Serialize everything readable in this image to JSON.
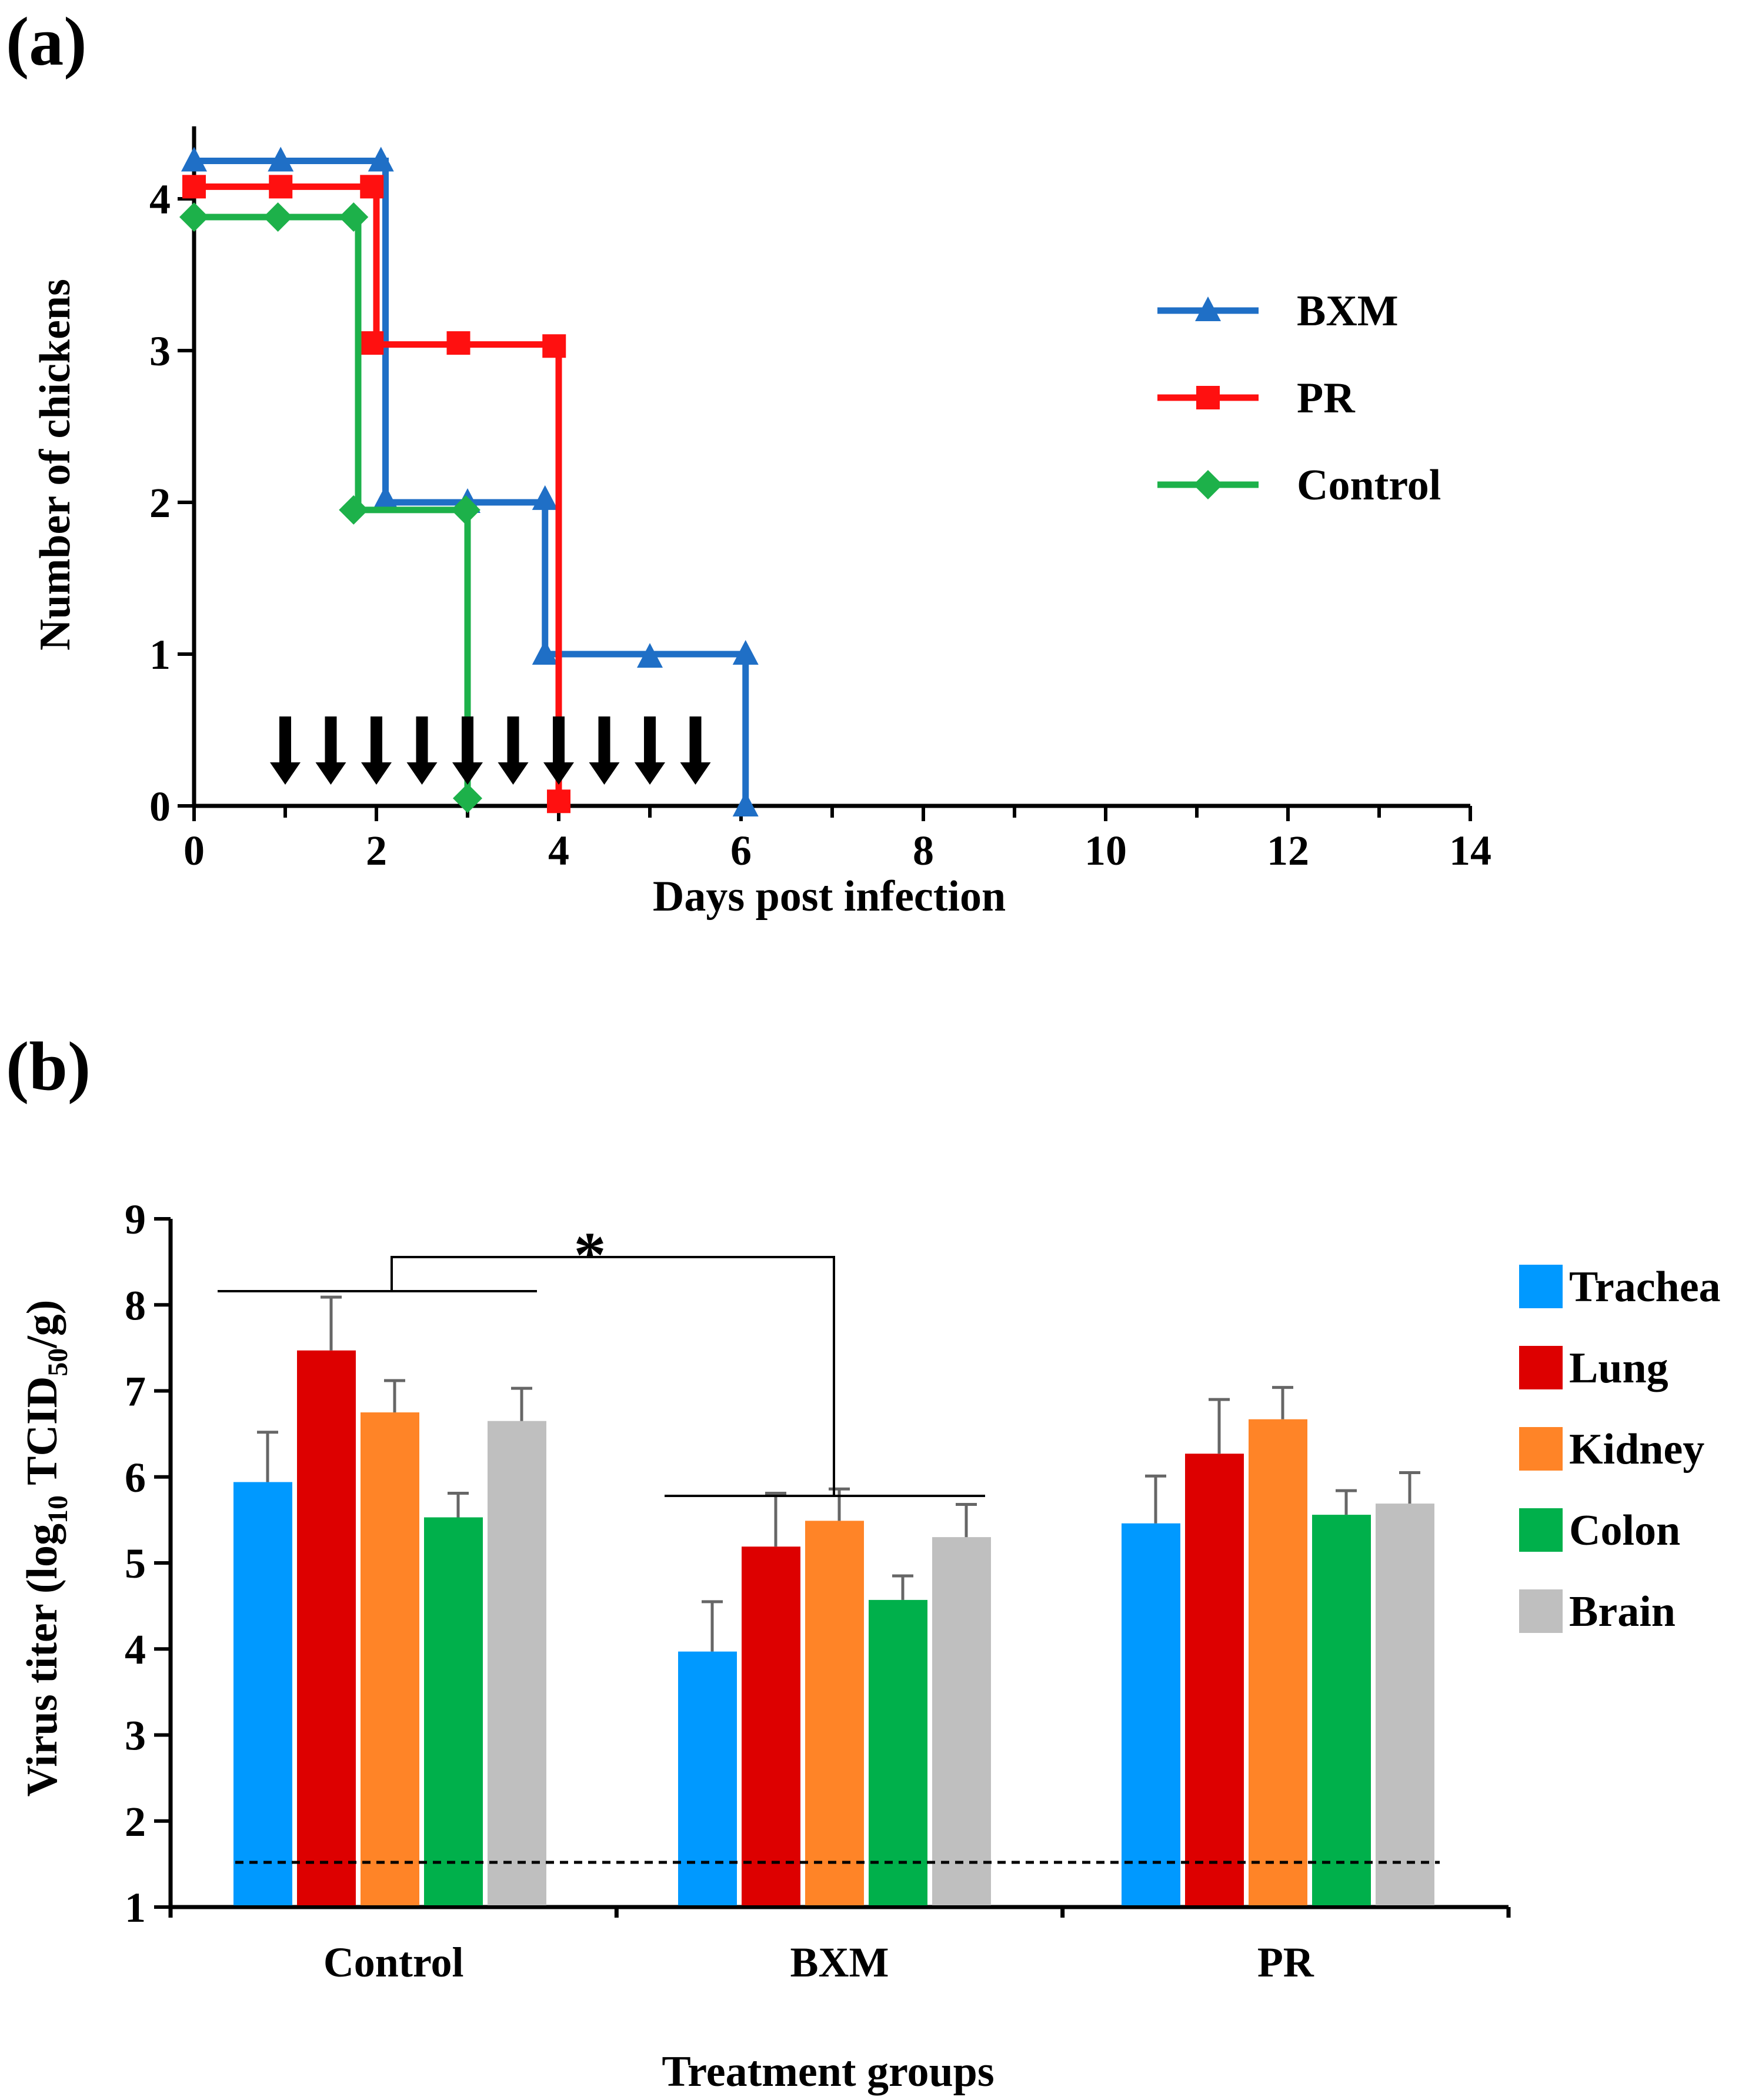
{
  "figure": {
    "panel_a_label": "(a)",
    "panel_b_label": "(b)"
  },
  "chart_data": [
    {
      "type": "line",
      "step": true,
      "panel": "(a)",
      "title": "",
      "xlabel": "Days post infection",
      "ylabel": "Number  of chickens",
      "xlim": [
        0,
        14
      ],
      "ylim": [
        0,
        4.4
      ],
      "xticks": [
        0,
        2,
        4,
        6,
        8,
        10,
        12,
        14
      ],
      "yticks": [
        0,
        1,
        2,
        3,
        4
      ],
      "grid": false,
      "legend_position": "top-right",
      "series": [
        {
          "name": "BXM",
          "color": "#1f6fc6",
          "marker": "triangle",
          "steps": [
            [
              0,
              4.25
            ],
            [
              2.1,
              4.25
            ],
            [
              2.1,
              2.0
            ],
            [
              3.85,
              2.0
            ],
            [
              3.85,
              1.0
            ],
            [
              6.05,
              1.0
            ],
            [
              6.05,
              0
            ]
          ],
          "markers": [
            [
              0,
              4.25
            ],
            [
              0.95,
              4.25
            ],
            [
              2.05,
              4.25
            ],
            [
              2.1,
              2.02
            ],
            [
              3.0,
              2.0
            ],
            [
              3.85,
              2.02
            ],
            [
              3.85,
              1.0
            ],
            [
              5.0,
              0.98
            ],
            [
              6.05,
              1.0
            ],
            [
              6.05,
              0
            ]
          ]
        },
        {
          "name": "PR",
          "color": "#ff1010",
          "marker": "square",
          "steps": [
            [
              0,
              4.08
            ],
            [
              2.0,
              4.08
            ],
            [
              2.0,
              3.04
            ],
            [
              4.0,
              3.04
            ],
            [
              4.0,
              0
            ]
          ],
          "markers": [
            [
              0,
              4.08
            ],
            [
              0.95,
              4.08
            ],
            [
              1.95,
              4.08
            ],
            [
              1.95,
              3.05
            ],
            [
              2.9,
              3.05
            ],
            [
              3.95,
              3.03
            ],
            [
              4.0,
              0.03
            ]
          ]
        },
        {
          "name": "Control",
          "color": "#1db14a",
          "marker": "diamond",
          "steps": [
            [
              0,
              3.88
            ],
            [
              1.8,
              3.88
            ],
            [
              1.8,
              1.95
            ],
            [
              3.0,
              1.95
            ],
            [
              3.0,
              0
            ]
          ],
          "markers": [
            [
              0,
              3.88
            ],
            [
              0.92,
              3.88
            ],
            [
              1.75,
              3.88
            ],
            [
              1.75,
              1.95
            ],
            [
              2.98,
              1.95
            ],
            [
              3.0,
              0.05
            ]
          ]
        }
      ],
      "arrows_x": [
        1.0,
        1.5,
        2.0,
        2.5,
        3.0,
        3.5,
        4.0,
        4.5,
        5.0,
        5.5
      ]
    },
    {
      "type": "bar",
      "panel": "(b)",
      "title": "",
      "xlabel": "Treatment groups",
      "ylabel_main": "Virus  titer (log",
      "ylabel_sub": "10",
      "ylabel_mid": " TCID",
      "ylabel_sub2": "50",
      "ylabel_end": "/g)",
      "ylim": [
        1,
        9
      ],
      "yticks": [
        1,
        2,
        3,
        4,
        5,
        6,
        7,
        8,
        9
      ],
      "grid": false,
      "legend_position": "right",
      "detection_limit": 1.52,
      "significance_marker": "*",
      "categories": [
        "Control",
        "BXM",
        "PR"
      ],
      "series": [
        {
          "name": "Trachea",
          "color": "#0099ff",
          "values": [
            5.94,
            3.97,
            5.46
          ],
          "errors": [
            0.58,
            0.58,
            0.55
          ]
        },
        {
          "name": "Lung",
          "color": "#dd0000",
          "values": [
            7.47,
            5.19,
            6.27
          ],
          "errors": [
            0.62,
            0.62,
            0.63
          ]
        },
        {
          "name": "Kidney",
          "color": "#ff8427",
          "values": [
            6.75,
            5.49,
            6.67
          ],
          "errors": [
            0.37,
            0.37,
            0.37
          ]
        },
        {
          "name": "Colon",
          "color": "#00b04b",
          "values": [
            5.53,
            4.57,
            5.56
          ],
          "errors": [
            0.28,
            0.28,
            0.28
          ]
        },
        {
          "name": "Brain",
          "color": "#bfbfbf",
          "values": [
            6.65,
            5.3,
            5.69
          ],
          "errors": [
            0.38,
            0.38,
            0.36
          ]
        }
      ]
    }
  ]
}
